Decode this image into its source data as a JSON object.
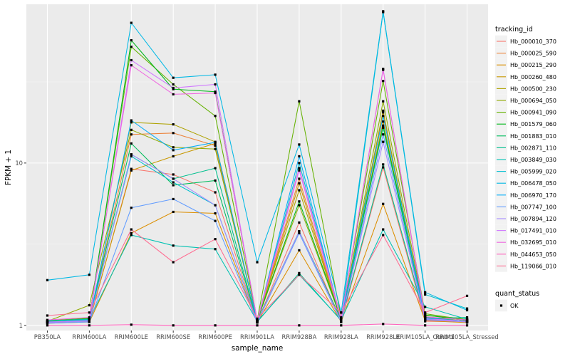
{
  "chart_data": {
    "type": "line",
    "xlabel": "sample_name",
    "ylabel": "FPKM + 1",
    "y_scale": "log10",
    "ylim": [
      0.93,
      95
    ],
    "y_ticks": [
      {
        "value": 1,
        "label": "1"
      },
      {
        "value": 10,
        "label": "10"
      }
    ],
    "grid": true,
    "legend_position": "right",
    "categories": [
      "PB350LA",
      "RRIM600LA",
      "RRIM600LE",
      "RRIM600SE",
      "RRIM600PE",
      "RRIM901LA",
      "RRIM928BA",
      "RRIM928LA",
      "RRIM928LE",
      "RRIM105LA_Control",
      "RRIM105LA_Stressed"
    ],
    "legend_title": "tracking_id",
    "series": [
      {
        "name": "Hb_000010_370",
        "color": "#F8766D",
        "values": [
          1.06,
          1.05,
          9.2,
          8.5,
          6.6,
          1.05,
          4.3,
          1.05,
          9.4,
          1.06,
          1.05
        ]
      },
      {
        "name": "Hb_000025_590",
        "color": "#EC8239",
        "values": [
          1.05,
          1.07,
          15.0,
          15.3,
          12.8,
          1.07,
          8.0,
          1.08,
          20.5,
          1.12,
          1.08
        ]
      },
      {
        "name": "Hb_000215_290",
        "color": "#DB8E00",
        "values": [
          1.03,
          1.05,
          3.7,
          5.0,
          4.9,
          1.04,
          2.9,
          1.05,
          5.6,
          1.07,
          1.04
        ]
      },
      {
        "name": "Hb_000260_480",
        "color": "#C79800",
        "values": [
          1.04,
          1.06,
          9.0,
          11.0,
          13.2,
          1.05,
          7.5,
          1.06,
          18.0,
          1.08,
          1.05
        ]
      },
      {
        "name": "Hb_000500_230",
        "color": "#AEA200",
        "values": [
          1.05,
          1.08,
          17.8,
          17.3,
          13.5,
          1.06,
          6.8,
          1.08,
          21.0,
          1.09,
          1.06
        ]
      },
      {
        "name": "Hb_000694_050",
        "color": "#8FAA00",
        "values": [
          1.06,
          1.33,
          16.0,
          12.5,
          12.2,
          1.07,
          5.5,
          1.09,
          24.0,
          1.15,
          1.1
        ]
      },
      {
        "name": "Hb_000941_090",
        "color": "#64B200",
        "values": [
          1.07,
          1.11,
          52.0,
          30.5,
          19.5,
          1.08,
          24.0,
          1.12,
          32.0,
          1.18,
          1.08
        ]
      },
      {
        "name": "Hb_001579_060",
        "color": "#00B81B",
        "values": [
          1.06,
          1.1,
          57.0,
          28.5,
          27.5,
          1.07,
          5.8,
          1.1,
          17.0,
          1.16,
          1.07
        ]
      },
      {
        "name": "Hb_001883_010",
        "color": "#00BD5C",
        "values": [
          1.05,
          1.09,
          13.2,
          7.3,
          7.8,
          1.06,
          3.8,
          1.09,
          16.5,
          1.12,
          1.06
        ]
      },
      {
        "name": "Hb_002871_110",
        "color": "#00C08E",
        "values": [
          1.04,
          1.08,
          11.3,
          8.0,
          9.3,
          1.05,
          2.1,
          1.07,
          9.8,
          1.1,
          1.12
        ]
      },
      {
        "name": "Hb_003849_030",
        "color": "#00C1B2",
        "values": [
          1.07,
          1.09,
          3.6,
          3.1,
          2.95,
          1.06,
          2.05,
          1.08,
          3.9,
          1.3,
          1.09
        ]
      },
      {
        "name": "Hb_005999_020",
        "color": "#00BFD0",
        "values": [
          1.05,
          1.08,
          11.0,
          7.6,
          5.5,
          1.06,
          10.0,
          1.09,
          85.0,
          1.55,
          1.27
        ]
      },
      {
        "name": "Hb_006478_050",
        "color": "#00B8E5",
        "values": [
          1.9,
          2.05,
          73.0,
          33.5,
          35.0,
          2.45,
          13.0,
          1.2,
          86.0,
          1.6,
          1.24
        ]
      },
      {
        "name": "Hb_006970_170",
        "color": "#00ADFA",
        "values": [
          1.05,
          1.07,
          18.3,
          12.0,
          13.4,
          1.06,
          11.0,
          1.09,
          19.5,
          1.11,
          1.06
        ]
      },
      {
        "name": "Hb_007747_100",
        "color": "#619CFF",
        "values": [
          1.03,
          1.05,
          5.3,
          6.0,
          4.4,
          1.04,
          3.7,
          1.05,
          15.0,
          1.09,
          1.05
        ]
      },
      {
        "name": "Hb_007894_120",
        "color": "#A58AFF",
        "values": [
          1.04,
          1.06,
          11.3,
          8.0,
          5.5,
          1.05,
          3.8,
          1.06,
          13.5,
          1.08,
          1.05
        ]
      },
      {
        "name": "Hb_017491_010",
        "color": "#D078FF",
        "values": [
          1.05,
          1.07,
          43.0,
          29.0,
          30.5,
          1.06,
          9.0,
          1.08,
          38.0,
          1.1,
          1.06
        ]
      },
      {
        "name": "Hb_032695_010",
        "color": "#EE67E0",
        "values": [
          1.08,
          1.12,
          40.0,
          26.5,
          27.0,
          1.08,
          9.3,
          1.11,
          37.5,
          1.13,
          1.08
        ]
      },
      {
        "name": "Hb_044653_050",
        "color": "#FF62BC",
        "values": [
          1.0,
          1.0,
          1.01,
          1.0,
          1.0,
          1.0,
          1.0,
          1.0,
          1.02,
          1.0,
          1.0
        ]
      },
      {
        "name": "Hb_119066_010",
        "color": "#FF6C91",
        "values": [
          1.15,
          1.2,
          3.9,
          2.45,
          3.4,
          1.1,
          2.05,
          1.2,
          3.6,
          1.2,
          1.52
        ]
      }
    ],
    "shape_legend": {
      "title": "quant_status",
      "entries": [
        {
          "label": "OK"
        }
      ]
    }
  }
}
